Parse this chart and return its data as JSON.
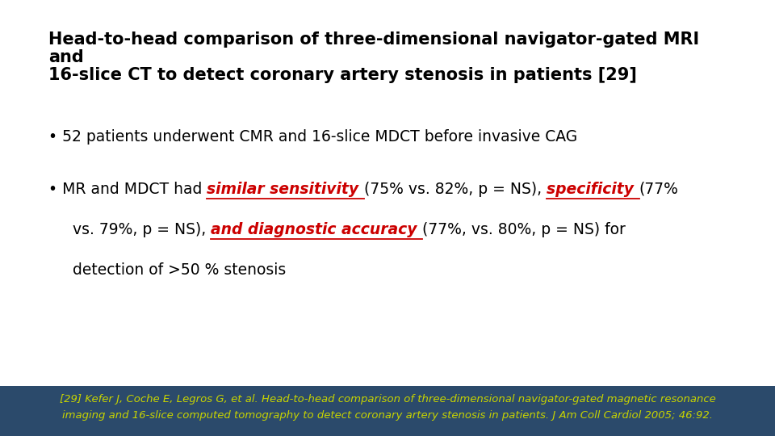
{
  "title_line1": "Head-to-head comparison of three-dimensional navigator-gated MRI",
  "title_line2": "and",
  "title_line3": "16-slice CT to detect coronary artery stenosis in patients [29]",
  "bullet1": "• 52 patients underwent CMR and 16-slice MDCT before invasive CAG",
  "b2_p1": "• MR and MDCT had ",
  "b2_h1": "similar sensitivity ",
  "b2_p2": "(75% vs. 82%, p = NS), ",
  "b2_h2": "specificity ",
  "b2_p3": "(77%",
  "b2_l2_p1": "vs. 79%, p = NS), ",
  "b2_l2_h1": "and diagnostic accuracy ",
  "b2_l2_p2": "(77%, vs. 80%, p = NS) for",
  "b2_l3": "detection of >50 % stenosis",
  "footer_line1": "[29] Kefer J, Coche E, Legros G, et al. Head-to-head comparison of three-dimensional navigator-gated magnetic resonance",
  "footer_line2": "imaging and 16-slice computed tomography to detect coronary artery stenosis in patients. J Am Coll Cardiol 2005; 46:92.",
  "bg_color": "#ffffff",
  "footer_bg": "#2b4a6b",
  "footer_fg": "#c8d400",
  "black": "#000000",
  "red": "#cc0000",
  "title_fs": 15,
  "body_fs": 13.5,
  "footer_fs": 9.5,
  "fig_w": 9.6,
  "fig_h": 5.4,
  "dpi": 100
}
